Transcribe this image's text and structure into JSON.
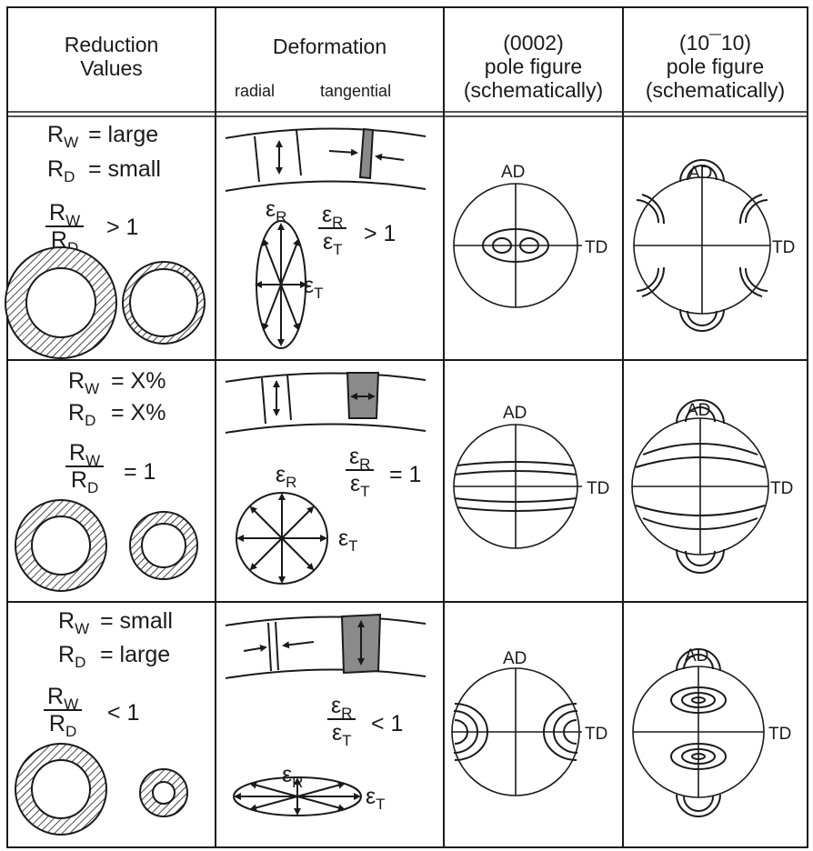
{
  "headers": {
    "col1": [
      "Reduction",
      "Values"
    ],
    "col2": "Deformation",
    "col2_sub": [
      "radial",
      "tangential"
    ],
    "col3": [
      "(0002)",
      "pole figure",
      "(schematically)"
    ],
    "col4": [
      "(10¯10)",
      "pole figure",
      "(schematically)"
    ]
  },
  "symbols": {
    "rw": "R",
    "rw_sub": "W",
    "rd": "R",
    "rd_sub": "D",
    "eps": "ε",
    "eps_r_sub": "R",
    "eps_t_sub": "T"
  },
  "rows": [
    {
      "rw_val": "= large",
      "rd_val": "= small",
      "ratio_rel": "> 1",
      "eps_ratio_rel": "> 1"
    },
    {
      "rw_val": "= X%",
      "rd_val": "= X%",
      "ratio_rel": "= 1",
      "eps_ratio_rel": "= 1"
    },
    {
      "rw_val": "= small",
      "rd_val": "= large",
      "ratio_rel": "< 1",
      "eps_ratio_rel": "< 1"
    }
  ],
  "pole_labels": {
    "ad": "AD",
    "td": "TD"
  },
  "colors": {
    "line": "#1a1a1a",
    "gray_fill": "#8a8a8a",
    "hatch": "#1a1a1a"
  }
}
